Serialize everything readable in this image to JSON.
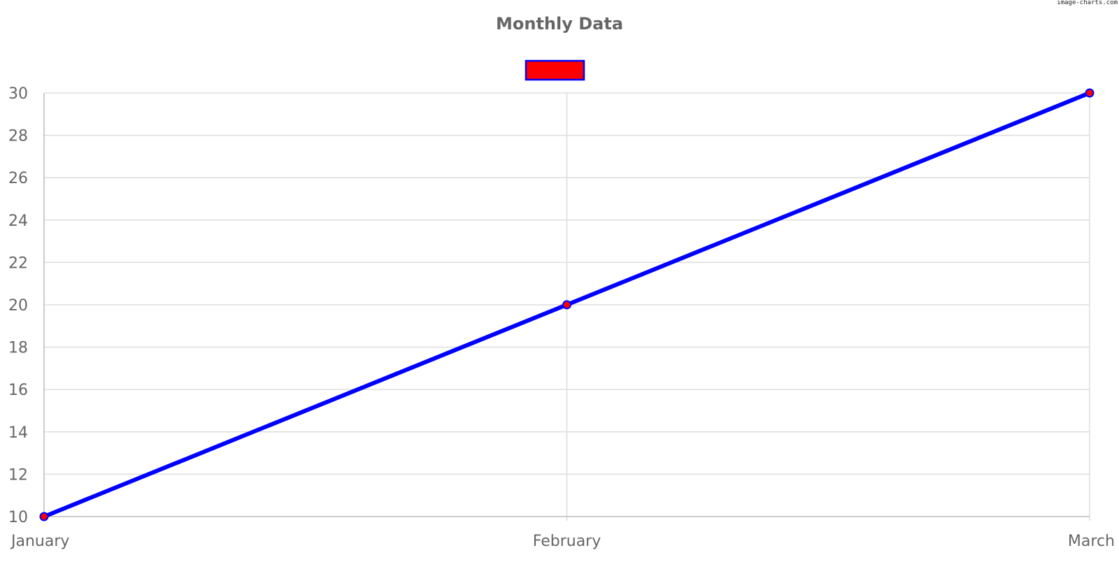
{
  "watermark": "image-charts.com",
  "chart_data": {
    "type": "line",
    "title": "Monthly Data",
    "categories": [
      "January",
      "February",
      "March"
    ],
    "series": [
      {
        "name": "",
        "values": [
          10,
          20,
          30
        ],
        "line_color": "#0000ff",
        "point_color": "#ff0000"
      }
    ],
    "ylim": [
      10,
      30
    ],
    "yticks": [
      "10",
      "12",
      "14",
      "16",
      "18",
      "20",
      "22",
      "24",
      "26",
      "28",
      "30"
    ],
    "xlabel": "",
    "ylabel": "",
    "grid": true,
    "legend_position": "top-center"
  },
  "colors": {
    "grid": "#dddddd",
    "axis": "#bbbbbb",
    "text": "#666666"
  }
}
